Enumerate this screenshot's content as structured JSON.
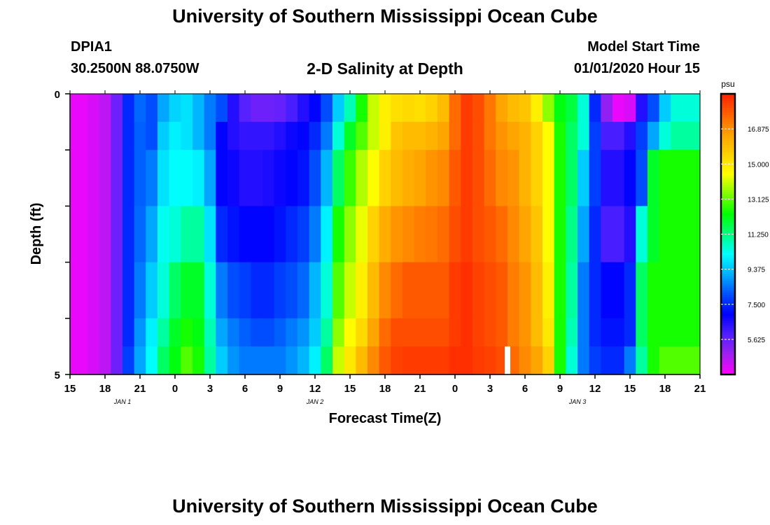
{
  "page": {
    "title_top": "University of Southern Mississippi Ocean Cube",
    "title_bottom": "University of Southern Mississippi Ocean Cube",
    "station_id": "DPIA1",
    "station_coords": "30.2500N 88.0750W",
    "model_start_label": "Model Start Time",
    "model_start_value": "01/01/2020 Hour 15"
  },
  "chart_data": {
    "type": "heatmap",
    "title": "2-D Salinity at Depth",
    "xlabel": "Forecast Time(Z)",
    "ylabel": "Depth (ft)",
    "x_tick_labels": [
      "15",
      "18",
      "21",
      "0",
      "3",
      "6",
      "9",
      "12",
      "15",
      "18",
      "21",
      "0",
      "3",
      "6",
      "9",
      "12",
      "15",
      "18",
      "21"
    ],
    "x_hours": [
      0,
      54
    ],
    "date_labels": [
      {
        "label": "JAN 1",
        "hour": 4.5
      },
      {
        "label": "JAN 2",
        "hour": 21
      },
      {
        "label": "JAN 3",
        "hour": 43.5
      }
    ],
    "y_tick_labels": [
      "0",
      "5"
    ],
    "y_range_ft": [
      0,
      5
    ],
    "colorbar": {
      "unit": "psu",
      "range": [
        3.75,
        18.75
      ],
      "tick_labels": [
        "16.875",
        "15.000",
        "13.125",
        "11.250",
        "9.375",
        "7.500",
        "5.625"
      ],
      "tick_values": [
        16.875,
        15.0,
        13.125,
        11.25,
        9.375,
        7.5,
        5.625
      ]
    },
    "layer_depth_bounds_ft": [
      0,
      0.5,
      1,
      2,
      3,
      4,
      4.5,
      5
    ],
    "time_hours": [
      0,
      1,
      2,
      3,
      4,
      5,
      6,
      7,
      8,
      9,
      10,
      11,
      12,
      13,
      14,
      15,
      16,
      17,
      18,
      19,
      20,
      21,
      22,
      23,
      24,
      25,
      26,
      27,
      28,
      29,
      30,
      31,
      32,
      33,
      34,
      35,
      36,
      37,
      38,
      39,
      40,
      41,
      42,
      43,
      44,
      45,
      46,
      47,
      48,
      49,
      50,
      51,
      52,
      53,
      54
    ],
    "salinity_layers": [
      [
        4.0,
        4.0,
        4.2,
        4.5,
        5.5,
        7.5,
        8.3,
        8.0,
        9.0,
        9.6,
        9.8,
        9.2,
        8.5,
        8.0,
        6.5,
        5.8,
        5.5,
        5.5,
        5.6,
        6.0,
        6.5,
        7.0,
        8.0,
        9.5,
        10.8,
        12.5,
        14.0,
        14.8,
        15.2,
        15.3,
        15.2,
        15.5,
        16.0,
        17.5,
        18.3,
        18.0,
        17.3,
        16.5,
        16.0,
        15.8,
        14.8,
        13.5,
        12.2,
        11.8,
        10.5,
        7.5,
        5.0,
        4.0,
        4.2,
        6.5,
        8.0,
        9.5,
        10.5,
        10.5,
        10.5
      ],
      [
        4.0,
        4.0,
        4.2,
        4.5,
        5.5,
        7.5,
        8.2,
        8.0,
        9.5,
        10.0,
        9.8,
        9.2,
        8.5,
        7.0,
        6.5,
        6.3,
        6.3,
        6.3,
        6.5,
        6.8,
        7.0,
        7.5,
        8.5,
        10.5,
        12.0,
        13.0,
        14.0,
        14.8,
        15.8,
        16.0,
        16.0,
        16.2,
        16.5,
        17.5,
        18.3,
        18.0,
        17.3,
        16.8,
        16.5,
        16.2,
        15.5,
        14.5,
        12.5,
        11.5,
        10.5,
        7.8,
        6.0,
        6.0,
        6.5,
        7.8,
        9.0,
        10.5,
        11.0,
        11.0,
        11.0
      ],
      [
        4.0,
        4.0,
        4.2,
        4.5,
        5.5,
        7.5,
        8.2,
        8.5,
        9.8,
        10.2,
        10.2,
        10.0,
        9.0,
        7.0,
        6.8,
        6.5,
        6.5,
        6.6,
        6.8,
        7.0,
        7.2,
        8.0,
        9.2,
        11.5,
        12.8,
        13.8,
        14.5,
        15.5,
        16.0,
        16.3,
        16.5,
        16.8,
        17.0,
        17.8,
        18.3,
        18.0,
        17.5,
        17.0,
        16.8,
        16.2,
        15.5,
        14.5,
        12.5,
        11.5,
        9.5,
        7.8,
        6.5,
        6.5,
        7.0,
        8.0,
        12.0,
        12.5,
        12.5,
        12.5,
        12.5
      ],
      [
        4.0,
        4.0,
        4.2,
        4.5,
        5.5,
        7.5,
        8.3,
        9.0,
        10.3,
        10.5,
        11.0,
        11.0,
        9.8,
        7.5,
        7.2,
        7.0,
        7.0,
        7.0,
        7.2,
        7.5,
        7.8,
        8.5,
        10.0,
        12.5,
        13.5,
        14.3,
        15.5,
        16.3,
        16.8,
        17.0,
        17.2,
        17.3,
        17.5,
        18.0,
        18.3,
        18.0,
        17.8,
        17.5,
        17.0,
        16.5,
        15.8,
        14.5,
        12.5,
        11.2,
        9.0,
        7.5,
        6.0,
        6.0,
        6.5,
        10.5,
        12.0,
        12.5,
        12.5,
        12.5,
        12.5
      ],
      [
        4.0,
        4.0,
        4.2,
        4.5,
        5.5,
        7.5,
        8.5,
        9.5,
        10.5,
        11.5,
        12.0,
        12.0,
        10.5,
        8.5,
        8.0,
        7.8,
        7.5,
        7.5,
        7.8,
        8.0,
        8.3,
        9.2,
        10.5,
        13.0,
        14.0,
        14.8,
        16.0,
        17.0,
        17.5,
        17.8,
        17.8,
        17.8,
        17.8,
        18.3,
        18.5,
        18.2,
        18.0,
        17.8,
        17.2,
        16.8,
        16.0,
        14.8,
        12.5,
        11.0,
        8.5,
        7.5,
        7.0,
        7.0,
        7.5,
        11.5,
        12.5,
        12.5,
        12.5,
        12.5,
        12.5
      ],
      [
        4.0,
        4.0,
        4.2,
        4.5,
        5.5,
        7.5,
        8.8,
        10.0,
        11.0,
        12.0,
        12.5,
        12.2,
        10.8,
        9.0,
        8.5,
        8.2,
        8.0,
        8.0,
        8.2,
        8.5,
        8.8,
        9.5,
        11.0,
        13.5,
        14.5,
        15.3,
        16.5,
        17.5,
        18.0,
        18.0,
        18.0,
        18.0,
        18.0,
        18.3,
        18.5,
        18.2,
        18.0,
        17.8,
        17.2,
        16.8,
        16.0,
        15.0,
        12.5,
        10.8,
        8.5,
        7.5,
        7.2,
        7.2,
        7.5,
        11.5,
        12.5,
        12.5,
        12.5,
        12.5,
        12.5
      ],
      [
        4.0,
        4.0,
        4.2,
        4.5,
        5.5,
        7.8,
        9.0,
        10.2,
        11.5,
        12.2,
        13.0,
        12.5,
        11.0,
        9.5,
        8.8,
        8.5,
        8.5,
        8.5,
        8.5,
        8.8,
        9.2,
        10.0,
        11.5,
        14.0,
        15.0,
        16.0,
        17.0,
        17.8,
        18.2,
        18.3,
        18.3,
        18.3,
        18.3,
        18.5,
        18.5,
        18.3,
        18.2,
        18.0,
        17.5,
        17.0,
        16.5,
        15.5,
        12.5,
        10.5,
        8.5,
        7.8,
        7.5,
        7.5,
        8.5,
        11.0,
        12.5,
        13.0,
        13.0,
        13.0,
        13.0
      ]
    ]
  },
  "colors": {
    "colorbar_stops": [
      "#ff00ff",
      "#a020f0",
      "#5020ff",
      "#0000ff",
      "#0050ff",
      "#00b0ff",
      "#00ffff",
      "#00ff80",
      "#00ff00",
      "#80ff00",
      "#ffff00",
      "#ffd000",
      "#ffa000",
      "#ff6000",
      "#ff2000"
    ],
    "background": "#ffffff",
    "gap_marker": "#ffffff"
  },
  "gap_marker_hour": 37.5
}
